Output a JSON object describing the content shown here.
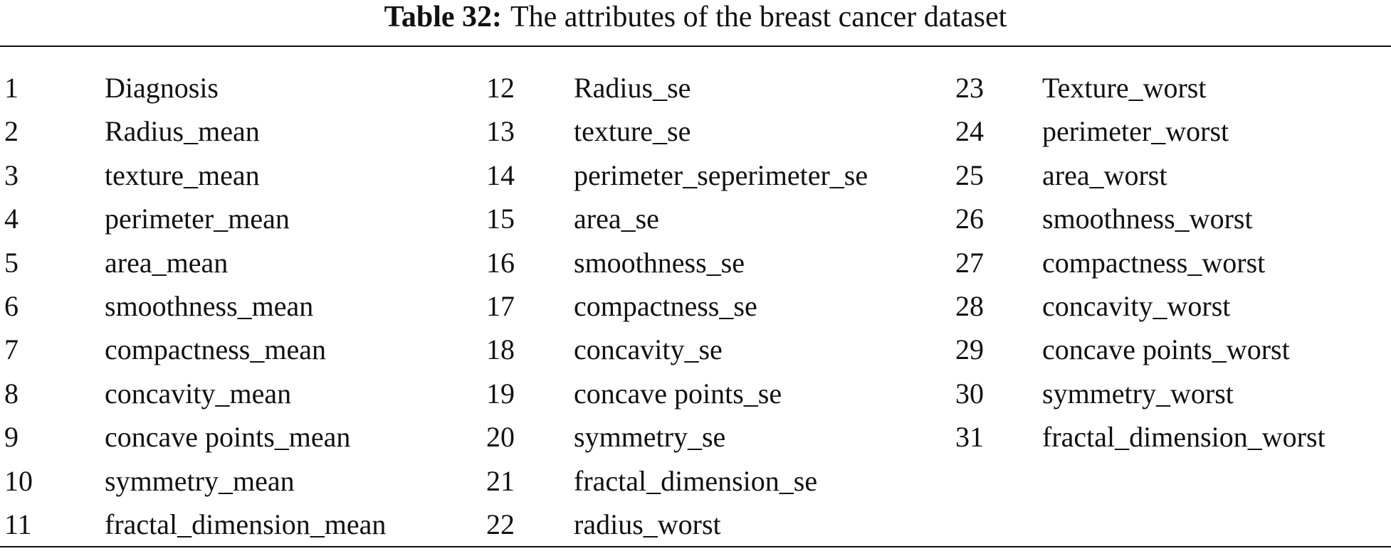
{
  "caption": {
    "label": "Table 32:",
    "text": "The attributes of the breast cancer dataset"
  },
  "table": {
    "columns": [
      [
        {
          "number": 1,
          "name": "Diagnosis"
        },
        {
          "number": 2,
          "name": "Radius_mean"
        },
        {
          "number": 3,
          "name": "texture_mean"
        },
        {
          "number": 4,
          "name": "perimeter_mean"
        },
        {
          "number": 5,
          "name": "area_mean"
        },
        {
          "number": 6,
          "name": "smoothness_mean"
        },
        {
          "number": 7,
          "name": "compactness_mean"
        },
        {
          "number": 8,
          "name": "concavity_mean"
        },
        {
          "number": 9,
          "name": "concave points_mean"
        },
        {
          "number": 10,
          "name": "symmetry_mean"
        },
        {
          "number": 11,
          "name": "fractal_dimension_mean"
        }
      ],
      [
        {
          "number": 12,
          "name": "Radius_se"
        },
        {
          "number": 13,
          "name": "texture_se"
        },
        {
          "number": 14,
          "name": "perimeter_seperimeter_se"
        },
        {
          "number": 15,
          "name": "area_se"
        },
        {
          "number": 16,
          "name": "smoothness_se"
        },
        {
          "number": 17,
          "name": "compactness_se"
        },
        {
          "number": 18,
          "name": "concavity_se"
        },
        {
          "number": 19,
          "name": "concave points_se"
        },
        {
          "number": 20,
          "name": "symmetry_se"
        },
        {
          "number": 21,
          "name": "fractal_dimension_se"
        },
        {
          "number": 22,
          "name": "radius_worst"
        }
      ],
      [
        {
          "number": 23,
          "name": "Texture_worst"
        },
        {
          "number": 24,
          "name": "perimeter_worst"
        },
        {
          "number": 25,
          "name": "area_worst"
        },
        {
          "number": 26,
          "name": "smoothness_worst"
        },
        {
          "number": 27,
          "name": "compactness_worst"
        },
        {
          "number": 28,
          "name": "concavity_worst"
        },
        {
          "number": 29,
          "name": "concave points_worst"
        },
        {
          "number": 30,
          "name": "symmetry_worst"
        },
        {
          "number": 31,
          "name": "fractal_dimension_worst"
        }
      ]
    ]
  }
}
